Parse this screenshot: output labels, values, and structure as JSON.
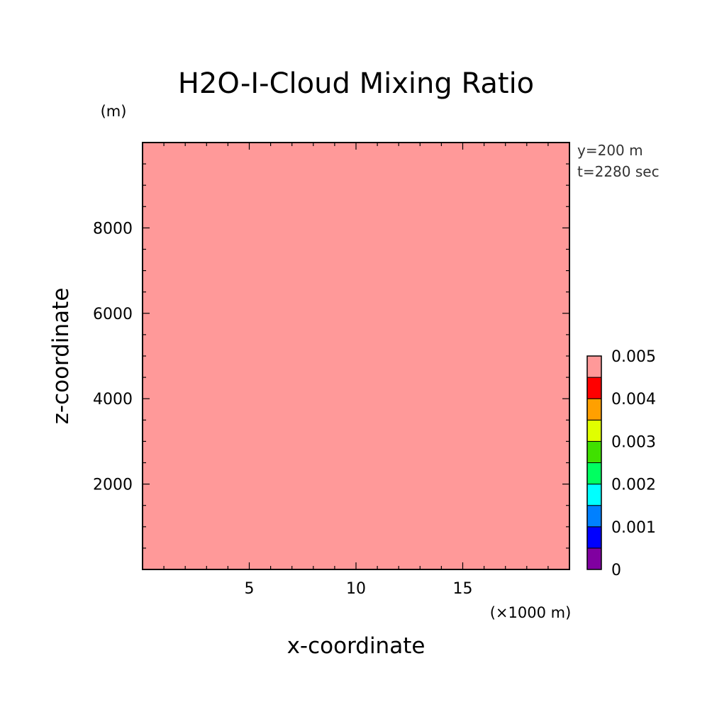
{
  "chart_data": {
    "type": "heatmap",
    "title": "H2O-I-Cloud Mixing Ratio",
    "xlabel": "x-coordinate",
    "ylabel": "z-coordinate",
    "x_unit": "(×1000 m)",
    "y_unit": "(m)",
    "annotations": [
      "y=200 m",
      "t=2280 sec"
    ],
    "xlim": [
      0,
      20
    ],
    "ylim": [
      0,
      10000
    ],
    "x_ticks": [
      5,
      10,
      15
    ],
    "x_tick_labels": [
      "5",
      "10",
      "15"
    ],
    "y_ticks": [
      2000,
      4000,
      6000,
      8000
    ],
    "y_tick_labels": [
      "2000",
      "4000",
      "6000",
      "8000"
    ],
    "field_value": 0.005,
    "field_color": "#ff9999",
    "grid": false,
    "colorbar": {
      "placement": "right",
      "levels": [
        0,
        0.0005,
        0.001,
        0.0015,
        0.002,
        0.0025,
        0.003,
        0.0035,
        0.004,
        0.0045,
        0.005
      ],
      "colors": [
        "#8000a0",
        "#0000ff",
        "#0080ff",
        "#00ffff",
        "#00ff60",
        "#40e000",
        "#e0ff00",
        "#ffa000",
        "#ff0000",
        "#ff9999"
      ],
      "tick_values": [
        0,
        0.001,
        0.002,
        0.003,
        0.004,
        0.005
      ],
      "tick_labels": [
        "0",
        "0.001",
        "0.002",
        "0.003",
        "0.004",
        "0.005"
      ]
    }
  }
}
